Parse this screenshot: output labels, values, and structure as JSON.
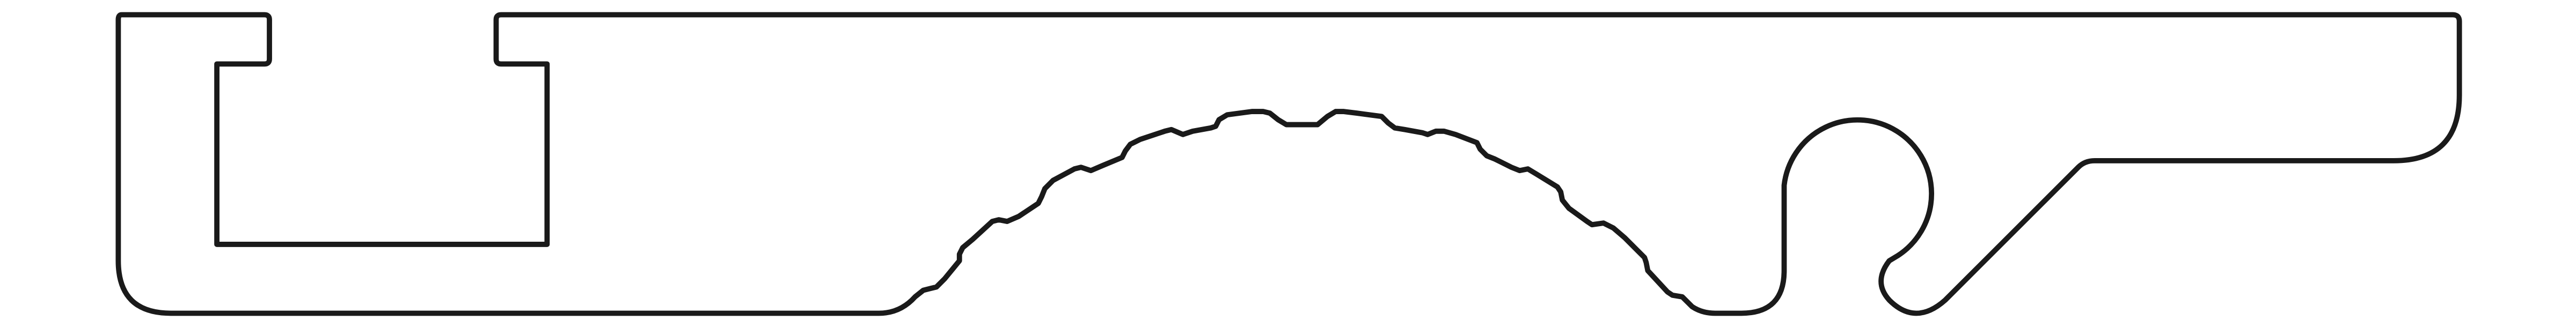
{
  "drawing": {
    "background_color": "#ffffff",
    "line_color": "#1a1a1a",
    "parts": [
      "outer-profile-outline",
      "rectangular-channel-cutout",
      "serrated-arch-groove",
      "round-hook-hole",
      "diagonal-slot-hook"
    ]
  }
}
